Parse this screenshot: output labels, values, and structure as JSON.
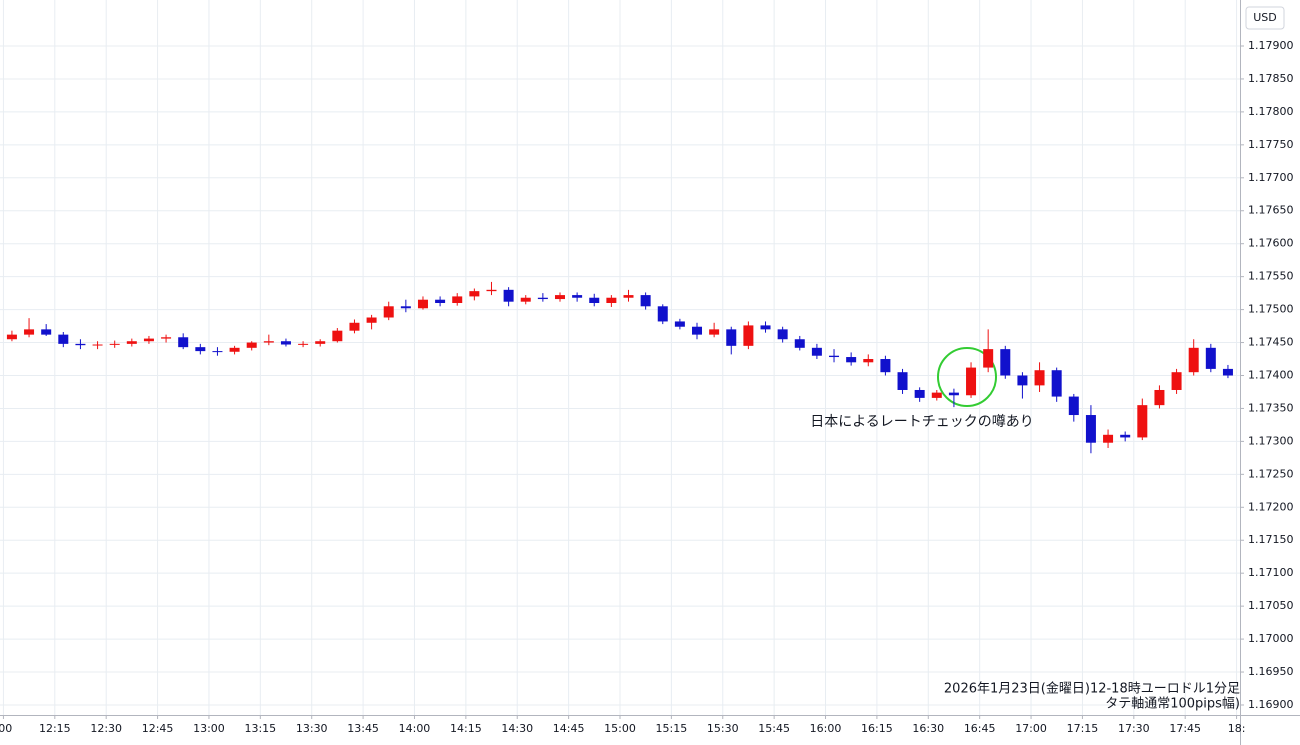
{
  "chart_data": {
    "type": "candlestick",
    "currency_label": "USD",
    "annotation": "日本によるレートチェックの噂あり",
    "caption": [
      "2026年1月23日(金曜日)12-18時ユーロドル1分足",
      "タテ軸通常100pips幅)"
    ],
    "up_color": "#ee1111",
    "down_color": "#1111cc",
    "grid": true,
    "x": [
      "12:00",
      "12:05",
      "12:10",
      "12:15",
      "12:20",
      "12:25",
      "12:30",
      "12:35",
      "12:40",
      "12:45",
      "12:50",
      "12:55",
      "13:00",
      "13:05",
      "13:10",
      "13:15",
      "13:20",
      "13:25",
      "13:30",
      "13:35",
      "13:40",
      "13:45",
      "13:50",
      "13:55",
      "14:00",
      "14:05",
      "14:10",
      "14:15",
      "14:20",
      "14:25",
      "14:30",
      "14:35",
      "14:40",
      "14:45",
      "14:50",
      "14:55",
      "15:00",
      "15:05",
      "15:10",
      "15:15",
      "15:20",
      "15:25",
      "15:30",
      "15:35",
      "15:40",
      "15:45",
      "15:50",
      "15:55",
      "16:00",
      "16:05",
      "16:10",
      "16:15",
      "16:20",
      "16:25",
      "16:30",
      "16:35",
      "16:40",
      "16:45",
      "16:50",
      "16:55",
      "17:00",
      "17:05",
      "17:10",
      "17:15",
      "17:20",
      "17:25",
      "17:30",
      "17:35",
      "17:40",
      "17:45",
      "17:50",
      "17:55"
    ],
    "open": [
      1.17455,
      1.17462,
      1.1747,
      1.17462,
      1.17448,
      1.17446,
      1.17447,
      1.17448,
      1.17452,
      1.17456,
      1.17458,
      1.17443,
      1.17437,
      1.17436,
      1.17442,
      1.1745,
      1.17452,
      1.17447,
      1.17448,
      1.17452,
      1.17468,
      1.1748,
      1.17488,
      1.17505,
      1.17502,
      1.17515,
      1.1751,
      1.1752,
      1.17528,
      1.1753,
      1.17512,
      1.17518,
      1.17516,
      1.17522,
      1.17518,
      1.1751,
      1.17518,
      1.17522,
      1.17505,
      1.17482,
      1.17474,
      1.17462,
      1.1747,
      1.17445,
      1.17476,
      1.1747,
      1.17455,
      1.17442,
      1.1743,
      1.17428,
      1.1742,
      1.17425,
      1.17405,
      1.17378,
      1.17366,
      1.17374,
      1.1737,
      1.17412,
      1.1744,
      1.174,
      1.17385,
      1.17408,
      1.17368,
      1.1734,
      1.17298,
      1.1731,
      1.17306,
      1.17355,
      1.17378,
      1.17405,
      1.17442,
      1.1741
    ],
    "high": [
      1.17468,
      1.17487,
      1.17478,
      1.17466,
      1.17455,
      1.17452,
      1.17453,
      1.17456,
      1.1746,
      1.17462,
      1.17464,
      1.17448,
      1.17443,
      1.17445,
      1.17452,
      1.17462,
      1.17456,
      1.17452,
      1.17455,
      1.17472,
      1.17485,
      1.17492,
      1.17512,
      1.17515,
      1.1752,
      1.1752,
      1.17525,
      1.17532,
      1.17542,
      1.17534,
      1.17522,
      1.17525,
      1.17526,
      1.17526,
      1.17524,
      1.17522,
      1.1753,
      1.17526,
      1.17508,
      1.17486,
      1.1748,
      1.1748,
      1.17474,
      1.17482,
      1.17482,
      1.17474,
      1.1746,
      1.17448,
      1.1744,
      1.17435,
      1.17432,
      1.1743,
      1.1741,
      1.17382,
      1.17378,
      1.1738,
      1.1742,
      1.1747,
      1.17445,
      1.17405,
      1.1742,
      1.17412,
      1.17372,
      1.17355,
      1.17318,
      1.17315,
      1.17365,
      1.17385,
      1.1741,
      1.17455,
      1.17448,
      1.17416
    ],
    "low": [
      1.17452,
      1.17458,
      1.1746,
      1.17443,
      1.1744,
      1.1744,
      1.17442,
      1.17444,
      1.17448,
      1.1745,
      1.1744,
      1.17432,
      1.1743,
      1.17432,
      1.17438,
      1.17446,
      1.17444,
      1.17443,
      1.17444,
      1.1745,
      1.17464,
      1.1747,
      1.17484,
      1.17496,
      1.175,
      1.17505,
      1.17506,
      1.17514,
      1.17522,
      1.17505,
      1.17508,
      1.17512,
      1.17512,
      1.17512,
      1.17505,
      1.17504,
      1.17512,
      1.175,
      1.17478,
      1.1747,
      1.17455,
      1.17458,
      1.17432,
      1.1744,
      1.17465,
      1.1745,
      1.17438,
      1.17425,
      1.1742,
      1.17415,
      1.17414,
      1.174,
      1.17372,
      1.1736,
      1.17362,
      1.17352,
      1.17366,
      1.17405,
      1.17395,
      1.17365,
      1.17375,
      1.1736,
      1.1733,
      1.17282,
      1.1729,
      1.173,
      1.17302,
      1.1735,
      1.17372,
      1.174,
      1.17405,
      1.17396
    ],
    "close": [
      1.17462,
      1.1747,
      1.17462,
      1.17448,
      1.17446,
      1.17447,
      1.17448,
      1.17452,
      1.17456,
      1.17458,
      1.17443,
      1.17437,
      1.17436,
      1.17442,
      1.1745,
      1.17452,
      1.17447,
      1.17448,
      1.17452,
      1.17468,
      1.1748,
      1.17488,
      1.17505,
      1.17502,
      1.17515,
      1.1751,
      1.1752,
      1.17528,
      1.1753,
      1.17512,
      1.17518,
      1.17516,
      1.17522,
      1.17518,
      1.1751,
      1.17518,
      1.17522,
      1.17505,
      1.17482,
      1.17474,
      1.17462,
      1.1747,
      1.17445,
      1.17476,
      1.1747,
      1.17455,
      1.17442,
      1.1743,
      1.17428,
      1.1742,
      1.17425,
      1.17405,
      1.17378,
      1.17366,
      1.17374,
      1.1737,
      1.17412,
      1.1744,
      1.174,
      1.17385,
      1.17408,
      1.17368,
      1.1734,
      1.17298,
      1.1731,
      1.17306,
      1.17355,
      1.17378,
      1.17405,
      1.17442,
      1.1741,
      1.174
    ],
    "xlim": [
      "11:59",
      "18:01"
    ],
    "xticks": [
      {
        "value": "12:00",
        "label": ":00"
      },
      "12:15",
      "12:30",
      "12:45",
      "13:00",
      "13:15",
      "13:30",
      "13:45",
      "14:00",
      "14:15",
      "14:30",
      "14:45",
      "15:00",
      "15:15",
      "15:30",
      "15:45",
      "16:00",
      "16:15",
      "16:30",
      "16:45",
      "17:00",
      "17:15",
      "17:30",
      "17:45",
      {
        "value": "18:00",
        "label": "18:"
      }
    ],
    "ylim": [
      1.168848,
      1.179698
    ],
    "yticks": [
      {
        "value": 1.169,
        "label": "1.16900"
      },
      {
        "value": 1.1695,
        "label": "1.16950"
      },
      {
        "value": 1.17,
        "label": "1.17000"
      },
      {
        "value": 1.1705,
        "label": "1.17050"
      },
      {
        "value": 1.171,
        "label": "1.17100"
      },
      {
        "value": 1.1715,
        "label": "1.17150"
      },
      {
        "value": 1.172,
        "label": "1.17200"
      },
      {
        "value": 1.1725,
        "label": "1.17250"
      },
      {
        "value": 1.173,
        "label": "1.17300"
      },
      {
        "value": 1.1735,
        "label": "1.17350"
      },
      {
        "value": 1.174,
        "label": "1.17400"
      },
      {
        "value": 1.1745,
        "label": "1.17450"
      },
      {
        "value": 1.175,
        "label": "1.17500"
      },
      {
        "value": 1.1755,
        "label": "1.17550"
      },
      {
        "value": 1.176,
        "label": "1.17600"
      },
      {
        "value": 1.1765,
        "label": "1.17650"
      },
      {
        "value": 1.177,
        "label": "1.17700"
      },
      {
        "value": 1.1775,
        "label": "1.17750"
      },
      {
        "value": 1.178,
        "label": "1.17800"
      },
      {
        "value": 1.1785,
        "label": "1.17850"
      },
      {
        "value": 1.179,
        "label": "1.17900"
      }
    ]
  }
}
